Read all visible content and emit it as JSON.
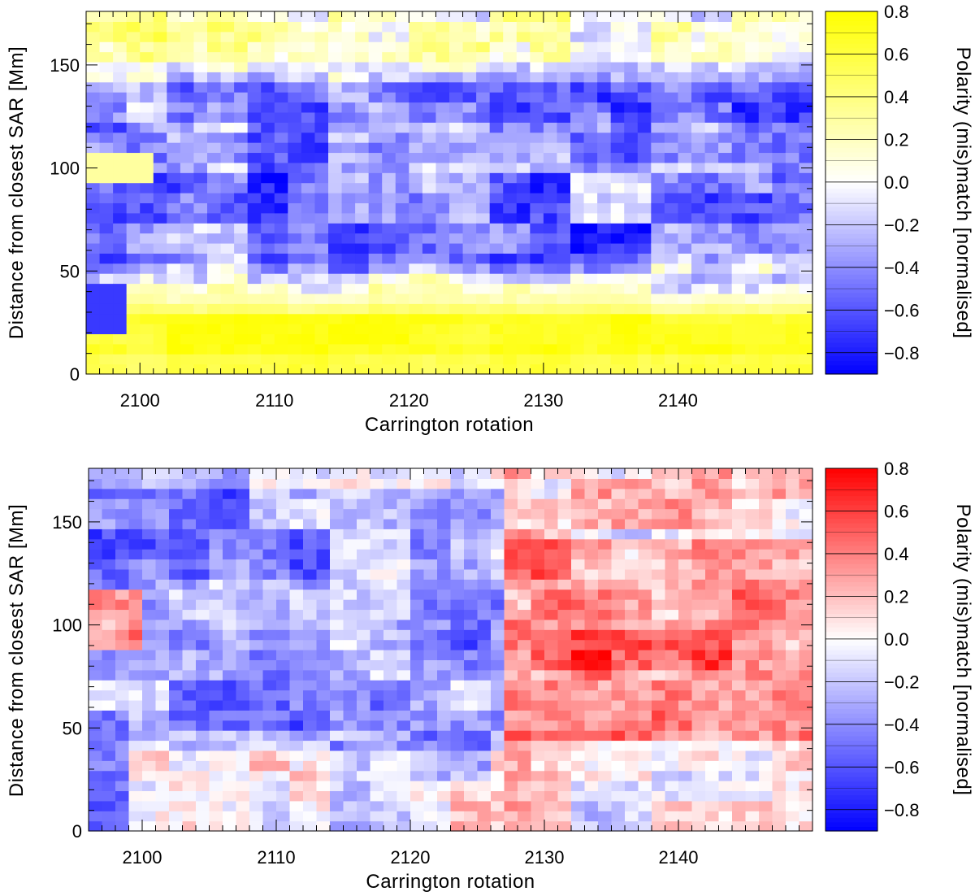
{
  "chart_data": [
    {
      "type": "heatmap",
      "colormap": "white-yellow",
      "xlabel": "Carrington rotation",
      "ylabel": "Distance from closest SAR [Mm]",
      "colorbar_label": "Polarity (mis)match [normalised]",
      "xlim": [
        2096,
        2150
      ],
      "ylim": [
        0,
        176
      ],
      "clim": [
        -0.9,
        0.8
      ],
      "x_ticks": [
        2100,
        2110,
        2120,
        2130,
        2140
      ],
      "y_ticks": [
        0,
        50,
        100,
        150
      ],
      "colorbar_ticks": [
        "0.8",
        "0.6",
        "0.4",
        "0.2",
        "0.0",
        "−0.2",
        "−0.4",
        "−0.6",
        "−0.8"
      ],
      "colorbar_values": [
        0.8,
        0.6,
        0.4,
        0.2,
        0.0,
        -0.2,
        -0.4,
        -0.6,
        -0.8
      ],
      "x_cells": 54,
      "y_cells": 36,
      "description_pattern": "strong positive band near 0-40 Mm across all rotations; negative band 50-140 Mm; mixed weakly positive near 150-175 Mm"
    },
    {
      "type": "heatmap",
      "colormap": "white-red",
      "xlabel": "Carrington rotation",
      "ylabel": "Distance from closest SAR [Mm]",
      "colorbar_label": "Polarity (mis)match [normalised]",
      "xlim": [
        2096,
        2150
      ],
      "ylim": [
        0,
        176
      ],
      "clim": [
        -0.9,
        0.8
      ],
      "x_ticks": [
        2100,
        2110,
        2120,
        2130,
        2140
      ],
      "y_ticks": [
        0,
        50,
        100,
        150
      ],
      "colorbar_ticks": [
        "0.8",
        "0.6",
        "0.4",
        "0.2",
        "0.0",
        "−0.2",
        "−0.4",
        "−0.6",
        "−0.8"
      ],
      "colorbar_values": [
        0.8,
        0.6,
        0.4,
        0.2,
        0.0,
        -0.2,
        -0.4,
        -0.6,
        -0.8
      ],
      "x_cells": 54,
      "y_cells": 36,
      "description_pattern": "negative values for rotations 2096-2125 at 40-160 Mm; positive values for rotations 2128-2150 at 50-140 Mm"
    }
  ]
}
